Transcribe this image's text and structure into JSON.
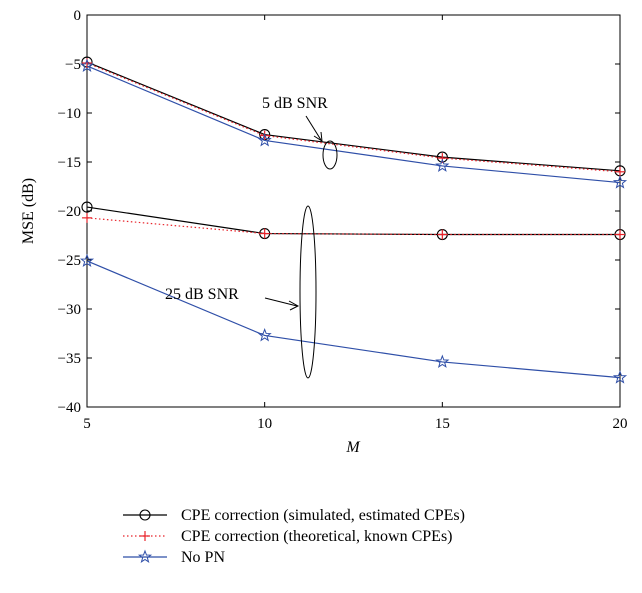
{
  "chart_data": {
    "type": "line",
    "xlabel": "M",
    "ylabel": "MSE (dB)",
    "xlim": [
      5,
      20
    ],
    "ylim": [
      -40,
      0
    ],
    "xticks": [
      5,
      10,
      15,
      20
    ],
    "yticks": [
      0,
      -5,
      -10,
      -15,
      -20,
      -25,
      -30,
      -35,
      -40
    ],
    "grid": false,
    "legend_position": "bottom",
    "x": [
      5,
      10,
      15,
      20
    ],
    "series": [
      {
        "name": "CPE correction (simulated, estimated CPEs)",
        "group": "5 dB SNR",
        "style": "circle-solid",
        "color": "#000000",
        "values": [
          -4.8,
          -12.2,
          -14.5,
          -15.9
        ]
      },
      {
        "name": "CPE correction (theoretical, known CPEs)",
        "group": "5 dB SNR",
        "style": "plus-dotted",
        "color": "#e8232a",
        "values": [
          -4.9,
          -12.3,
          -14.6,
          -16.0
        ]
      },
      {
        "name": "No PN",
        "group": "5 dB SNR",
        "style": "star-solid",
        "color": "#2f4fa8",
        "values": [
          -5.2,
          -12.8,
          -15.4,
          -17.1
        ]
      },
      {
        "name": "CPE correction (simulated, estimated CPEs)",
        "group": "25 dB SNR",
        "style": "circle-solid",
        "color": "#000000",
        "values": [
          -19.6,
          -22.3,
          -22.4,
          -22.4
        ]
      },
      {
        "name": "CPE correction (theoretical, known CPEs)",
        "group": "25 dB SNR",
        "style": "plus-dotted",
        "color": "#e8232a",
        "values": [
          -20.7,
          -22.3,
          -22.4,
          -22.4
        ]
      },
      {
        "name": "No PN",
        "group": "25 dB SNR",
        "style": "star-solid",
        "color": "#2f4fa8",
        "values": [
          -25.1,
          -32.7,
          -35.4,
          -37.0
        ]
      }
    ],
    "annotations": [
      {
        "text": "5 dB SNR",
        "x": 11.5,
        "y": -11
      },
      {
        "text": "25 dB SNR",
        "x": 8.7,
        "y": -26
      }
    ],
    "legend": [
      {
        "label": "CPE correction (simulated, estimated CPEs)",
        "style": "circle-solid",
        "color": "#000000"
      },
      {
        "label": "CPE correction (theoretical, known CPEs)",
        "style": "plus-dotted",
        "color": "#e8232a"
      },
      {
        "label": "No PN",
        "style": "star-solid",
        "color": "#2f4fa8"
      }
    ]
  }
}
